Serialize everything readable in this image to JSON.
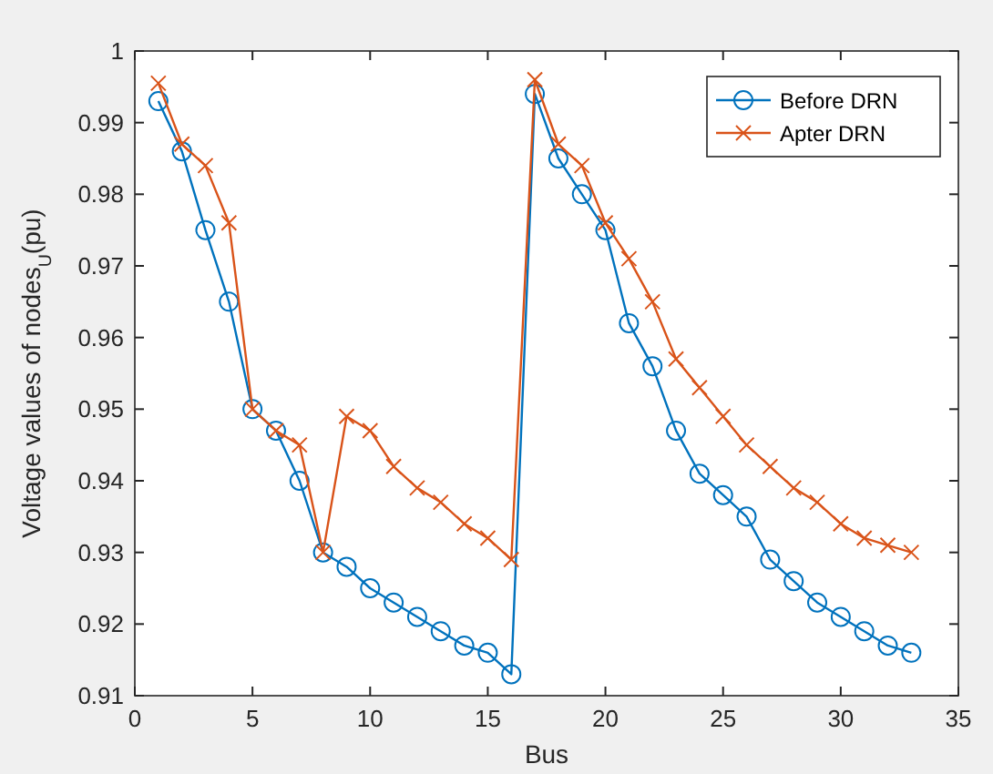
{
  "chart_data": {
    "type": "line",
    "xlabel": "Bus",
    "ylabel": "Voltage values of nodes$_{U}$(pu)",
    "x": [
      1,
      2,
      3,
      4,
      5,
      6,
      7,
      8,
      9,
      10,
      11,
      12,
      13,
      14,
      15,
      16,
      17,
      18,
      19,
      20,
      21,
      22,
      23,
      24,
      25,
      26,
      27,
      28,
      29,
      30,
      31,
      32,
      33
    ],
    "series": [
      {
        "name": "Before DRN",
        "color": "#0072bd",
        "marker": "circle",
        "values": [
          0.993,
          0.986,
          0.975,
          0.965,
          0.95,
          0.947,
          0.94,
          0.93,
          0.928,
          0.925,
          0.923,
          0.921,
          0.919,
          0.917,
          0.916,
          0.913,
          0.994,
          0.985,
          0.98,
          0.975,
          0.962,
          0.956,
          0.947,
          0.941,
          0.938,
          0.935,
          0.929,
          0.926,
          0.923,
          0.921,
          0.919,
          0.917,
          0.916
        ]
      },
      {
        "name": "Apter DRN",
        "color": "#d95319",
        "marker": "cross",
        "values": [
          0.9955,
          0.987,
          0.984,
          0.976,
          0.95,
          0.947,
          0.945,
          0.93,
          0.949,
          0.947,
          0.942,
          0.939,
          0.937,
          0.934,
          0.932,
          0.929,
          0.996,
          0.987,
          0.984,
          0.976,
          0.971,
          0.965,
          0.957,
          0.953,
          0.949,
          0.945,
          0.942,
          0.939,
          0.937,
          0.934,
          0.932,
          0.931,
          0.93
        ]
      }
    ],
    "xlim": [
      0,
      35
    ],
    "xticks": [
      0,
      5,
      10,
      15,
      20,
      25,
      30,
      35
    ],
    "ylim": [
      0.91,
      1
    ],
    "yticks": [
      0.91,
      0.92,
      0.93,
      0.94,
      0.95,
      0.96,
      0.97,
      0.98,
      0.99,
      1
    ],
    "grid": false,
    "legend": "top right",
    "line_style": "solid"
  }
}
